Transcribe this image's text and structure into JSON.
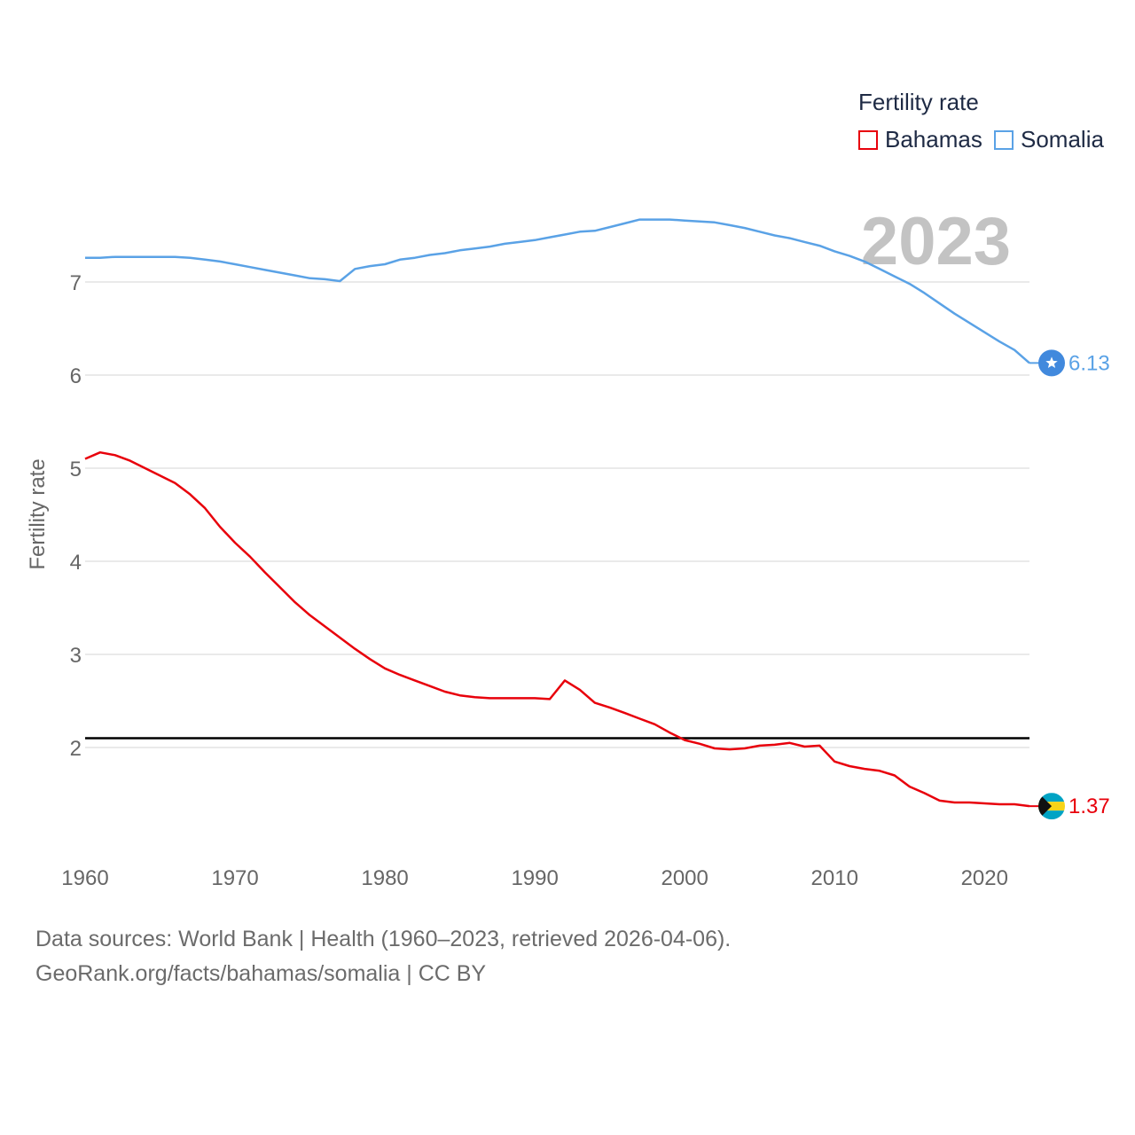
{
  "legend": {
    "title": "Fertility rate",
    "items": [
      {
        "label": "Bahamas",
        "color": "#e8000b"
      },
      {
        "label": "Somalia",
        "color": "#5aa2e6"
      }
    ]
  },
  "footer": {
    "line1": "Data sources: World Bank | Health (1960–2023, retrieved 2026-04-06).",
    "line2": "GeoRank.org/facts/bahamas/somalia | CC BY"
  },
  "chart_data": {
    "type": "line",
    "title": "Fertility rate",
    "year_label": "2023",
    "ylabel": "Fertility rate",
    "xlabel": "",
    "xlim": [
      1960,
      2023
    ],
    "ylim": [
      1.0,
      7.8
    ],
    "xticks": [
      1960,
      1970,
      1980,
      1990,
      2000,
      2010,
      2020
    ],
    "yticks": [
      2,
      3,
      4,
      5,
      6,
      7
    ],
    "reference_line": {
      "y": 2.1,
      "color": "#000000"
    },
    "x": [
      1960,
      1961,
      1962,
      1963,
      1964,
      1965,
      1966,
      1967,
      1968,
      1969,
      1970,
      1971,
      1972,
      1973,
      1974,
      1975,
      1976,
      1977,
      1978,
      1979,
      1980,
      1981,
      1982,
      1983,
      1984,
      1985,
      1986,
      1987,
      1988,
      1989,
      1990,
      1991,
      1992,
      1993,
      1994,
      1995,
      1996,
      1997,
      1998,
      1999,
      2000,
      2001,
      2002,
      2003,
      2004,
      2005,
      2006,
      2007,
      2008,
      2009,
      2010,
      2011,
      2012,
      2013,
      2014,
      2015,
      2016,
      2017,
      2018,
      2019,
      2020,
      2021,
      2022,
      2023
    ],
    "series": [
      {
        "name": "Somalia",
        "color": "#5aa2e6",
        "end_label": "6.13",
        "marker_icon": "somalia-flag-icon",
        "values": [
          7.26,
          7.26,
          7.27,
          7.27,
          7.27,
          7.27,
          7.27,
          7.26,
          7.24,
          7.22,
          7.19,
          7.16,
          7.13,
          7.1,
          7.07,
          7.04,
          7.03,
          7.01,
          7.14,
          7.17,
          7.19,
          7.24,
          7.26,
          7.29,
          7.31,
          7.34,
          7.36,
          7.38,
          7.41,
          7.43,
          7.45,
          7.48,
          7.51,
          7.54,
          7.55,
          7.59,
          7.63,
          7.67,
          7.67,
          7.67,
          7.66,
          7.65,
          7.64,
          7.61,
          7.58,
          7.54,
          7.5,
          7.47,
          7.43,
          7.39,
          7.33,
          7.28,
          7.22,
          7.14,
          7.06,
          6.98,
          6.88,
          6.77,
          6.66,
          6.56,
          6.46,
          6.36,
          6.27,
          6.13
        ]
      },
      {
        "name": "Bahamas",
        "color": "#e8000b",
        "end_label": "1.37",
        "marker_icon": "bahamas-flag-icon",
        "values": [
          5.1,
          5.17,
          5.14,
          5.08,
          5.0,
          4.92,
          4.84,
          4.72,
          4.57,
          4.37,
          4.2,
          4.05,
          3.88,
          3.72,
          3.56,
          3.42,
          3.3,
          3.18,
          3.06,
          2.95,
          2.85,
          2.78,
          2.72,
          2.66,
          2.6,
          2.56,
          2.54,
          2.53,
          2.53,
          2.53,
          2.53,
          2.52,
          2.72,
          2.62,
          2.48,
          2.43,
          2.37,
          2.31,
          2.25,
          2.16,
          2.08,
          2.04,
          1.99,
          1.98,
          1.99,
          2.02,
          2.03,
          2.05,
          2.01,
          2.02,
          1.85,
          1.8,
          1.77,
          1.75,
          1.7,
          1.58,
          1.51,
          1.43,
          1.41,
          1.41,
          1.4,
          1.39,
          1.39,
          1.37
        ]
      }
    ]
  }
}
